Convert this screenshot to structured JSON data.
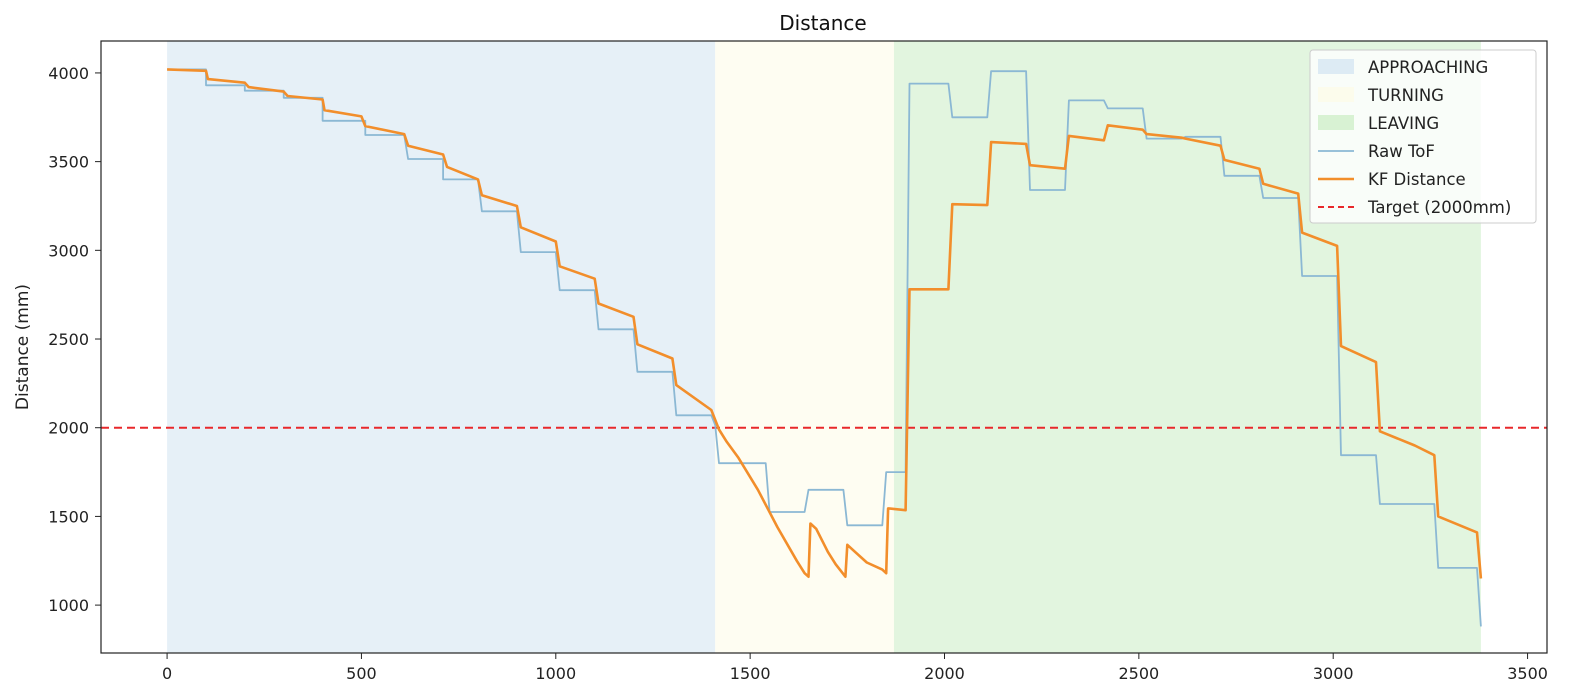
{
  "chart_data": {
    "type": "line",
    "title": "Distance",
    "xlabel": "",
    "ylabel": "Distance (mm)",
    "xlim": [
      -170,
      3550
    ],
    "ylim": [
      730,
      4180
    ],
    "xticks": [
      0,
      500,
      1000,
      1500,
      2000,
      2500,
      3000,
      3500
    ],
    "yticks": [
      1000,
      1500,
      2000,
      2500,
      3000,
      3500,
      4000
    ],
    "grid": false,
    "legend_position": "top-right",
    "regions": [
      {
        "name": "APPROACHING",
        "x_start": 0,
        "x_end": 1410,
        "color": "#d6e6f2"
      },
      {
        "name": "TURNING",
        "x_start": 1410,
        "x_end": 1870,
        "color": "#fdfbe9"
      },
      {
        "name": "LEAVING",
        "x_start": 1870,
        "x_end": 3380,
        "color": "#cfefc9"
      }
    ],
    "series": [
      {
        "name": "Raw ToF",
        "color": "#8bb8d4",
        "step": true,
        "points": [
          [
            0,
            4020
          ],
          [
            100,
            4020
          ],
          [
            100,
            3930
          ],
          [
            200,
            3930
          ],
          [
            200,
            3900
          ],
          [
            300,
            3900
          ],
          [
            300,
            3860
          ],
          [
            400,
            3860
          ],
          [
            400,
            3730
          ],
          [
            510,
            3730
          ],
          [
            510,
            3650
          ],
          [
            610,
            3650
          ],
          [
            620,
            3515
          ],
          [
            710,
            3515
          ],
          [
            710,
            3400
          ],
          [
            800,
            3400
          ],
          [
            810,
            3220
          ],
          [
            900,
            3220
          ],
          [
            910,
            2990
          ],
          [
            1000,
            2990
          ],
          [
            1010,
            2775
          ],
          [
            1100,
            2775
          ],
          [
            1110,
            2555
          ],
          [
            1200,
            2555
          ],
          [
            1210,
            2315
          ],
          [
            1300,
            2315
          ],
          [
            1310,
            2070
          ],
          [
            1400,
            2070
          ],
          [
            1410,
            2015
          ],
          [
            1420,
            1800
          ],
          [
            1540,
            1800
          ],
          [
            1550,
            1525
          ],
          [
            1640,
            1525
          ],
          [
            1650,
            1650
          ],
          [
            1740,
            1650
          ],
          [
            1750,
            1450
          ],
          [
            1840,
            1450
          ],
          [
            1850,
            1750
          ],
          [
            1900,
            1750
          ],
          [
            1910,
            3940
          ],
          [
            2010,
            3940
          ],
          [
            2020,
            3750
          ],
          [
            2110,
            3750
          ],
          [
            2120,
            4010
          ],
          [
            2210,
            4010
          ],
          [
            2220,
            3340
          ],
          [
            2310,
            3340
          ],
          [
            2320,
            3845
          ],
          [
            2410,
            3845
          ],
          [
            2420,
            3800
          ],
          [
            2510,
            3800
          ],
          [
            2520,
            3630
          ],
          [
            2610,
            3630
          ],
          [
            2620,
            3640
          ],
          [
            2710,
            3640
          ],
          [
            2720,
            3420
          ],
          [
            2810,
            3420
          ],
          [
            2820,
            3295
          ],
          [
            2910,
            3295
          ],
          [
            2920,
            2855
          ],
          [
            3010,
            2855
          ],
          [
            3020,
            1845
          ],
          [
            3110,
            1845
          ],
          [
            3120,
            1570
          ],
          [
            3260,
            1570
          ],
          [
            3270,
            1210
          ],
          [
            3370,
            1210
          ],
          [
            3380,
            880
          ]
        ]
      },
      {
        "name": "KF Distance",
        "color": "#f28e2b",
        "step": false,
        "points": [
          [
            0,
            4020
          ],
          [
            100,
            4012
          ],
          [
            105,
            3965
          ],
          [
            200,
            3945
          ],
          [
            210,
            3920
          ],
          [
            300,
            3895
          ],
          [
            310,
            3870
          ],
          [
            400,
            3850
          ],
          [
            405,
            3790
          ],
          [
            500,
            3755
          ],
          [
            510,
            3700
          ],
          [
            610,
            3655
          ],
          [
            620,
            3590
          ],
          [
            710,
            3540
          ],
          [
            720,
            3470
          ],
          [
            800,
            3400
          ],
          [
            810,
            3310
          ],
          [
            900,
            3250
          ],
          [
            910,
            3130
          ],
          [
            1000,
            3050
          ],
          [
            1010,
            2910
          ],
          [
            1100,
            2840
          ],
          [
            1110,
            2700
          ],
          [
            1200,
            2625
          ],
          [
            1210,
            2470
          ],
          [
            1300,
            2390
          ],
          [
            1310,
            2240
          ],
          [
            1400,
            2100
          ],
          [
            1420,
            1990
          ],
          [
            1440,
            1920
          ],
          [
            1470,
            1830
          ],
          [
            1520,
            1650
          ],
          [
            1570,
            1440
          ],
          [
            1620,
            1250
          ],
          [
            1640,
            1180
          ],
          [
            1650,
            1160
          ],
          [
            1655,
            1460
          ],
          [
            1670,
            1430
          ],
          [
            1700,
            1300
          ],
          [
            1720,
            1230
          ],
          [
            1745,
            1160
          ],
          [
            1750,
            1340
          ],
          [
            1770,
            1300
          ],
          [
            1800,
            1240
          ],
          [
            1840,
            1200
          ],
          [
            1850,
            1180
          ],
          [
            1855,
            1545
          ],
          [
            1900,
            1535
          ],
          [
            1910,
            2780
          ],
          [
            2010,
            2780
          ],
          [
            2020,
            3260
          ],
          [
            2110,
            3255
          ],
          [
            2120,
            3610
          ],
          [
            2210,
            3600
          ],
          [
            2220,
            3480
          ],
          [
            2310,
            3460
          ],
          [
            2320,
            3645
          ],
          [
            2410,
            3620
          ],
          [
            2420,
            3705
          ],
          [
            2510,
            3680
          ],
          [
            2520,
            3655
          ],
          [
            2610,
            3635
          ],
          [
            2620,
            3630
          ],
          [
            2710,
            3590
          ],
          [
            2720,
            3510
          ],
          [
            2810,
            3460
          ],
          [
            2820,
            3375
          ],
          [
            2910,
            3320
          ],
          [
            2920,
            3100
          ],
          [
            3010,
            3025
          ],
          [
            3020,
            2460
          ],
          [
            3110,
            2370
          ],
          [
            3120,
            1980
          ],
          [
            3210,
            1900
          ],
          [
            3260,
            1845
          ],
          [
            3270,
            1500
          ],
          [
            3370,
            1410
          ],
          [
            3380,
            1150
          ]
        ]
      }
    ],
    "reference_lines": [
      {
        "name": "Target (2000mm)",
        "y": 2000,
        "color": "#e8282b",
        "style": "dashed"
      }
    ]
  }
}
